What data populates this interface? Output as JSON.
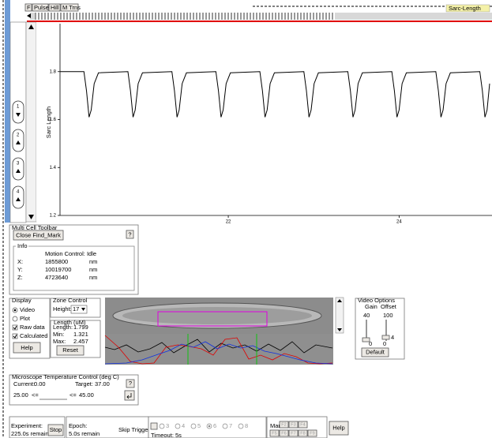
{
  "toolbar": {
    "buttons": [
      "F",
      "Pulse",
      "Hill",
      "M Trns"
    ],
    "channel": "Sarc-Length"
  },
  "channels": [
    "1",
    "2",
    "3",
    "4"
  ],
  "plot": {
    "type": "line",
    "y_label": "Sarc Length",
    "xlim": [
      20.03,
      25.06
    ],
    "ylim": [
      1.2,
      2.0
    ],
    "xticks": [
      22,
      24
    ],
    "yticks": [
      1.2,
      1.4,
      1.6,
      1.8
    ],
    "series": [
      {
        "color": "#000000",
        "x": [
          20.03,
          20.31,
          20.34,
          20.37,
          20.395,
          20.43,
          20.48,
          20.825,
          20.855,
          20.885,
          20.91,
          20.945,
          20.995,
          21.34,
          21.37,
          21.4,
          21.425,
          21.46,
          21.51,
          21.855,
          21.885,
          21.915,
          21.94,
          21.975,
          22.025,
          22.37,
          22.4,
          22.43,
          22.455,
          22.49,
          22.54,
          22.885,
          22.915,
          22.945,
          22.97,
          23.005,
          23.055,
          23.4,
          23.43,
          23.46,
          23.485,
          23.52,
          23.57,
          23.915,
          23.945,
          23.975,
          24.0,
          24.035,
          24.085,
          24.43,
          24.46,
          24.49,
          24.515,
          24.55,
          24.6,
          24.945,
          24.975,
          25.005,
          25.03,
          25.06
        ],
        "values": [
          1.8,
          1.8,
          1.72,
          1.61,
          1.64,
          1.75,
          1.795,
          1.8,
          1.72,
          1.61,
          1.64,
          1.75,
          1.795,
          1.8,
          1.72,
          1.61,
          1.64,
          1.75,
          1.795,
          1.8,
          1.72,
          1.61,
          1.64,
          1.75,
          1.795,
          1.8,
          1.72,
          1.61,
          1.64,
          1.75,
          1.795,
          1.8,
          1.72,
          1.61,
          1.64,
          1.75,
          1.795,
          1.8,
          1.72,
          1.61,
          1.64,
          1.75,
          1.795,
          1.8,
          1.72,
          1.61,
          1.64,
          1.75,
          1.795,
          1.8,
          1.72,
          1.61,
          1.64,
          1.75,
          1.795,
          1.8,
          1.72,
          1.61,
          1.64,
          1.75
        ]
      }
    ]
  },
  "multi_cell": {
    "title": "Multi Cell Toolbar",
    "close_button": "Close Find_Mark",
    "help": "?",
    "info": {
      "title": "Info",
      "status": "Motion Control: Idle",
      "rows": [
        [
          "X:",
          "1855800",
          "nm"
        ],
        [
          "Y:",
          "10019700",
          "nm"
        ],
        [
          "Z:",
          "4723640",
          "nm"
        ]
      ]
    }
  },
  "display": {
    "title": "Display",
    "video": "Video",
    "plot": "Plot",
    "raw": "Raw data",
    "calculated": "Calculated",
    "help": "Help"
  },
  "zone": {
    "title": "Zone Control",
    "height_label": "Height:",
    "height": "17",
    "length": {
      "title": "Length (uM)",
      "rows": [
        [
          "Length:",
          "1.799"
        ],
        [
          "Min:",
          "1.321"
        ],
        [
          "Max:",
          "2.457"
        ]
      ],
      "reset": "Reset"
    }
  },
  "video_options": {
    "title": "Video Options",
    "gain": "Gain",
    "offset": "Offset",
    "gain_max": "40",
    "offset_max": "100",
    "gain_value": "0",
    "offset_value": "4",
    "offset_min": "0",
    "default": "Default"
  },
  "temperature": {
    "title": "Microscope Temperature Control (deg C)",
    "current_label": "Current:",
    "current": "0.00",
    "target_label": "Target:",
    "target": "37.00",
    "help": "?",
    "min": "25.00",
    "le1": "<=",
    "le2": "<=",
    "max": "45.00"
  },
  "status_bar": {
    "experiment_label": "Experiment:",
    "experiment_remain": "225.0s remain",
    "stop": "Stop",
    "epoch_label": "Epoch:",
    "epoch_remain": "5.0s remain",
    "skip_trigger": "Skip Trigger",
    "epochs": [
      "3",
      "4",
      "5",
      "6",
      "7",
      "8"
    ],
    "timeout": "Timeout: 5s",
    "mark_label": "Mark:",
    "mark_keys": [
      "F2",
      "F3",
      "F4",
      "F5",
      "F6",
      "F7",
      "F8",
      "F9"
    ],
    "help": "Help"
  }
}
